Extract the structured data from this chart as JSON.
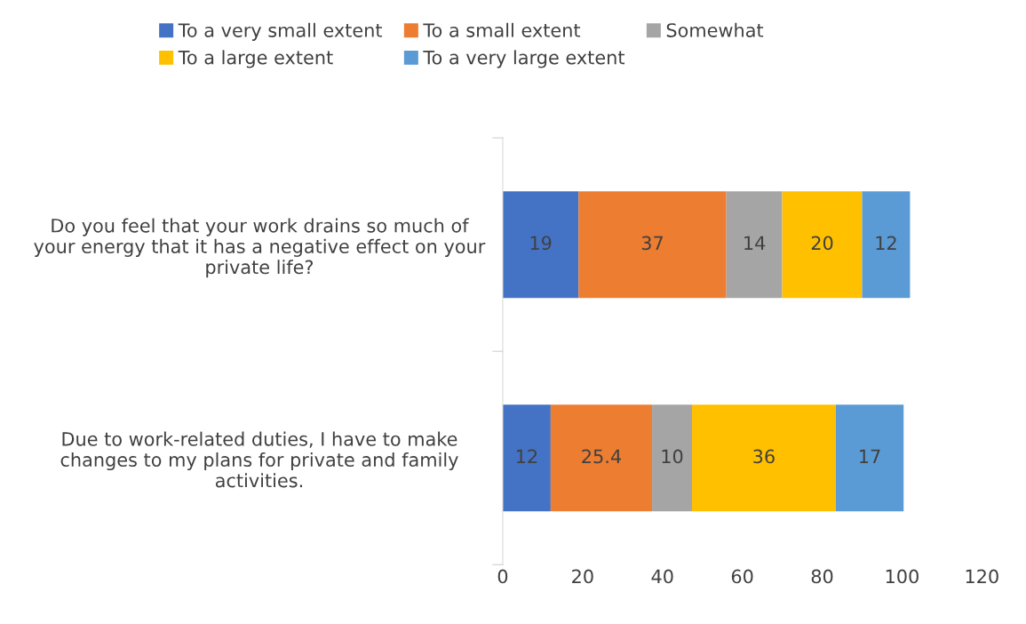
{
  "chart_data": {
    "type": "bar",
    "orientation": "horizontal",
    "stacked": true,
    "categories": [
      "Do you feel that your work drains so much of your energy that it has a negative effect on your private life?",
      "Due to work-related duties, I have to make changes to my plans for private and family activities."
    ],
    "series": [
      {
        "name": "To a very small extent",
        "color": "#4472c4",
        "values": [
          19,
          12
        ]
      },
      {
        "name": "To a small extent",
        "color": "#ed7d31",
        "values": [
          37,
          25.4
        ]
      },
      {
        "name": "Somewhat",
        "color": "#a5a5a5",
        "values": [
          14,
          10
        ]
      },
      {
        "name": "To a large extent",
        "color": "#ffc000",
        "values": [
          20,
          36
        ]
      },
      {
        "name": "To a very large extent",
        "color": "#5b9bd5",
        "values": [
          12,
          17
        ]
      }
    ],
    "xlim": [
      0,
      120
    ],
    "xticks": [
      0,
      20,
      40,
      60,
      80,
      100,
      120
    ],
    "data_labels": true,
    "legend": "top",
    "grid": false
  }
}
